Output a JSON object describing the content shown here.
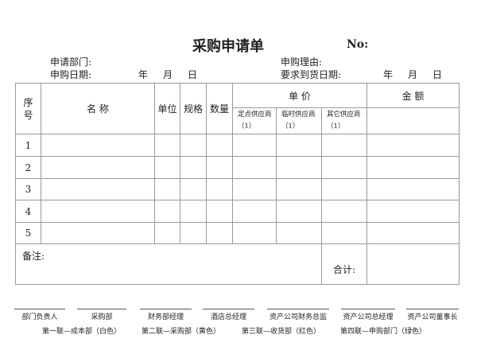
{
  "title": "采购申请单",
  "no_label": "No:",
  "info": {
    "dept_label": "申请部门:",
    "date_label": "申购日期:",
    "reason_label": "申购理由:",
    "arrival_label": "要求到货日期:",
    "year": "年",
    "month": "月",
    "day": "日"
  },
  "table": {
    "headers": {
      "seq": "序号",
      "name": "名 称",
      "unit": "单位",
      "spec": "规格",
      "qty": "数量",
      "price": "单 价",
      "amount": "金 额"
    },
    "suppliers": [
      "定点供应商 （1）",
      "临时供应商 （1）",
      "其它供应商 （1）"
    ],
    "rows": [
      "1",
      "2",
      "3",
      "4",
      "5"
    ],
    "remark_label": "备注:",
    "total_label": "合计:"
  },
  "signatures": [
    "部门负责人",
    "采购部",
    "财务部经理",
    "酒店总经理",
    "资产公司财务总监",
    "资产公司总经理",
    "资产公司董事长"
  ],
  "copies": [
    "第一联—成本部（白色）",
    "第二联—采购部（黄色）",
    "第三联—收货部（红色）",
    "第四联—申购部门（绿色）"
  ]
}
